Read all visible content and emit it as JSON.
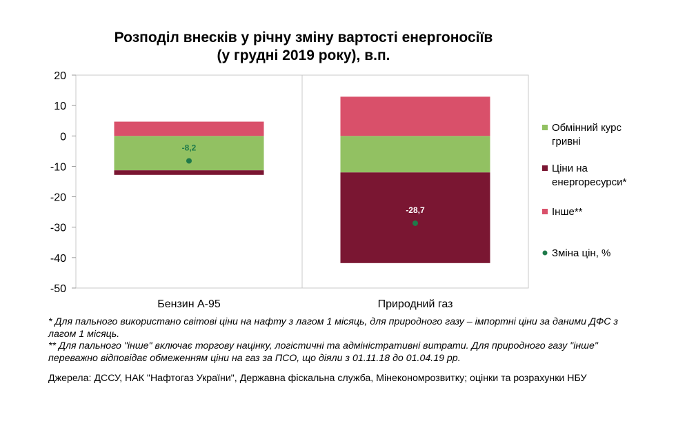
{
  "chart_data": {
    "type": "bar",
    "stacked": true,
    "title_line1": "Розподіл внесків у річну зміну вартості енергоносіїв",
    "title_line2": "(у грудні 2019 року), в.п.",
    "categories": [
      "Бензин А-95",
      "Природний газ"
    ],
    "ylim": [
      -50,
      20
    ],
    "yticks": [
      20,
      10,
      0,
      -10,
      -20,
      -30,
      -40,
      -50
    ],
    "ytick_labels": [
      "20",
      "10",
      "0",
      "-10",
      "-20",
      "-30",
      "-40",
      "-50"
    ],
    "series": [
      {
        "name_lines": [
          "Обмінний курс",
          "гривні"
        ],
        "color": "#92c162",
        "values": [
          -11.3,
          -12.0
        ]
      },
      {
        "name_lines": [
          "Ціни на",
          "енергоресурси*"
        ],
        "color": "#7a1632",
        "values": [
          -1.5,
          -29.8
        ]
      },
      {
        "name_lines": [
          "Інше**"
        ],
        "color": "#d9506a",
        "values": [
          4.7,
          12.9
        ]
      }
    ],
    "price_change": {
      "name": "Зміна цін, %",
      "color": "#1f7a4a",
      "values": [
        -8.2,
        -28.7
      ],
      "labels": [
        "-8,2",
        "-28,7"
      ],
      "label_colors": [
        "#1f7a4a",
        "#ffffff"
      ]
    },
    "grid": false,
    "legend_position": "right"
  },
  "notes": {
    "note1": "* Для пального використано світові ціни на нафту з лагом 1 місяць, для природного газу – імпортні ціни за даними ДФС з лагом 1 місяць.",
    "note2": "** Для пального \"інше\" включає торгову націнку, логістичні та адміністративні витрати. Для природного газу \"інше\" переважно відповідає обмеженням ціни на газ за ПСО, що діяли з 01.11.18 до 01.04.19 рр.",
    "sources": "Джерела: ДССУ, НАК \"Нафтогаз України\", Державна фіскальна служба, Мінекономрозвитку; оцінки та розрахунки НБУ"
  }
}
